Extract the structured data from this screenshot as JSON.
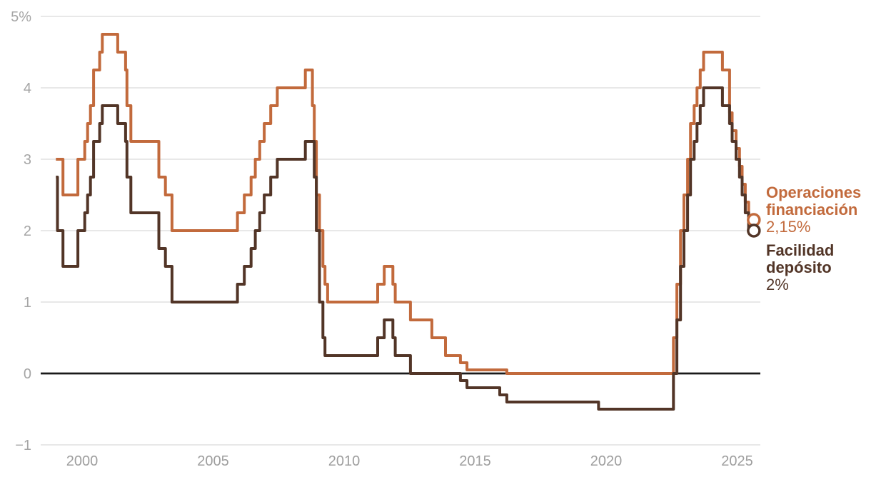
{
  "chart_data": {
    "type": "line",
    "subtype": "step",
    "title": "",
    "xlabel": "",
    "ylabel": "",
    "xlim": [
      1999.0,
      2025.75
    ],
    "ylim": [
      -1,
      5
    ],
    "grid": "horizontal",
    "legend_position": "right-outside",
    "x_ticks": [
      2000,
      2005,
      2010,
      2015,
      2020,
      2025
    ],
    "y_ticks": [
      {
        "v": 5,
        "label": "5%"
      },
      {
        "v": 4,
        "label": "4"
      },
      {
        "v": 3,
        "label": "3"
      },
      {
        "v": 2,
        "label": "2"
      },
      {
        "v": 1,
        "label": "1"
      },
      {
        "v": 0,
        "label": "0"
      },
      {
        "v": -1,
        "label": "−1"
      }
    ],
    "zero_line_color": "#1a1a1a",
    "grid_color": "#e8e8e8",
    "tick_color": "#a5a5a5",
    "background_color": "#ffffff",
    "x_end": 2025.5,
    "series": [
      {
        "name": "Operaciones financiación",
        "color": "#c26a3c",
        "current_value": "2,15%",
        "end_label": {
          "line1": "Operaciones",
          "line2": "financiación",
          "value": "2,15%"
        },
        "points": [
          [
            1999.0,
            3.0
          ],
          [
            1999.27,
            2.5
          ],
          [
            1999.84,
            3.0
          ],
          [
            2000.1,
            3.25
          ],
          [
            2000.21,
            3.5
          ],
          [
            2000.32,
            3.75
          ],
          [
            2000.44,
            4.25
          ],
          [
            2000.67,
            4.5
          ],
          [
            2000.77,
            4.75
          ],
          [
            2001.36,
            4.5
          ],
          [
            2001.66,
            4.25
          ],
          [
            2001.71,
            3.75
          ],
          [
            2001.86,
            3.25
          ],
          [
            2002.93,
            2.75
          ],
          [
            2003.18,
            2.5
          ],
          [
            2003.43,
            2.0
          ],
          [
            2005.93,
            2.25
          ],
          [
            2006.19,
            2.5
          ],
          [
            2006.45,
            2.75
          ],
          [
            2006.61,
            3.0
          ],
          [
            2006.78,
            3.25
          ],
          [
            2006.95,
            3.5
          ],
          [
            2007.2,
            3.75
          ],
          [
            2007.45,
            4.0
          ],
          [
            2008.52,
            4.25
          ],
          [
            2008.79,
            3.75
          ],
          [
            2008.86,
            3.25
          ],
          [
            2008.94,
            2.5
          ],
          [
            2009.06,
            2.0
          ],
          [
            2009.19,
            1.5
          ],
          [
            2009.27,
            1.25
          ],
          [
            2009.37,
            1.0
          ],
          [
            2011.28,
            1.25
          ],
          [
            2011.53,
            1.5
          ],
          [
            2011.86,
            1.25
          ],
          [
            2011.95,
            1.0
          ],
          [
            2012.53,
            0.75
          ],
          [
            2013.35,
            0.5
          ],
          [
            2013.87,
            0.25
          ],
          [
            2014.44,
            0.15
          ],
          [
            2014.69,
            0.05
          ],
          [
            2016.21,
            0.0
          ],
          [
            2022.57,
            0.5
          ],
          [
            2022.7,
            1.25
          ],
          [
            2022.84,
            2.0
          ],
          [
            2022.97,
            2.5
          ],
          [
            2023.11,
            3.0
          ],
          [
            2023.22,
            3.5
          ],
          [
            2023.36,
            3.75
          ],
          [
            2023.47,
            4.0
          ],
          [
            2023.59,
            4.25
          ],
          [
            2023.72,
            4.5
          ],
          [
            2024.44,
            4.25
          ],
          [
            2024.71,
            3.65
          ],
          [
            2024.81,
            3.4
          ],
          [
            2024.96,
            3.15
          ],
          [
            2025.09,
            2.9
          ],
          [
            2025.19,
            2.65
          ],
          [
            2025.31,
            2.4
          ],
          [
            2025.44,
            2.15
          ]
        ]
      },
      {
        "name": "Facilidad depósito",
        "color": "#523527",
        "current_value": "2%",
        "end_label": {
          "line1": "Facilidad",
          "line2": "depósito",
          "value": "2%"
        },
        "points": [
          [
            1999.0,
            2.75
          ],
          [
            1999.06,
            2.0
          ],
          [
            1999.27,
            1.5
          ],
          [
            1999.84,
            2.0
          ],
          [
            2000.1,
            2.25
          ],
          [
            2000.21,
            2.5
          ],
          [
            2000.32,
            2.75
          ],
          [
            2000.44,
            3.25
          ],
          [
            2000.67,
            3.5
          ],
          [
            2000.77,
            3.75
          ],
          [
            2001.36,
            3.5
          ],
          [
            2001.66,
            3.25
          ],
          [
            2001.71,
            2.75
          ],
          [
            2001.86,
            2.25
          ],
          [
            2002.93,
            1.75
          ],
          [
            2003.18,
            1.5
          ],
          [
            2003.43,
            1.0
          ],
          [
            2005.93,
            1.25
          ],
          [
            2006.19,
            1.5
          ],
          [
            2006.45,
            1.75
          ],
          [
            2006.61,
            2.0
          ],
          [
            2006.78,
            2.25
          ],
          [
            2006.95,
            2.5
          ],
          [
            2007.2,
            2.75
          ],
          [
            2007.45,
            3.0
          ],
          [
            2008.52,
            3.25
          ],
          [
            2008.86,
            2.75
          ],
          [
            2008.94,
            2.0
          ],
          [
            2009.06,
            1.0
          ],
          [
            2009.19,
            0.5
          ],
          [
            2009.27,
            0.25
          ],
          [
            2011.28,
            0.5
          ],
          [
            2011.53,
            0.75
          ],
          [
            2011.86,
            0.5
          ],
          [
            2011.95,
            0.25
          ],
          [
            2012.53,
            0.0
          ],
          [
            2014.44,
            -0.1
          ],
          [
            2014.69,
            -0.2
          ],
          [
            2015.94,
            -0.3
          ],
          [
            2016.21,
            -0.4
          ],
          [
            2019.71,
            -0.5
          ],
          [
            2022.57,
            0.0
          ],
          [
            2022.7,
            0.75
          ],
          [
            2022.84,
            1.5
          ],
          [
            2022.97,
            2.0
          ],
          [
            2023.11,
            2.5
          ],
          [
            2023.22,
            3.0
          ],
          [
            2023.36,
            3.25
          ],
          [
            2023.47,
            3.5
          ],
          [
            2023.59,
            3.75
          ],
          [
            2023.72,
            4.0
          ],
          [
            2024.44,
            3.75
          ],
          [
            2024.71,
            3.5
          ],
          [
            2024.81,
            3.25
          ],
          [
            2024.96,
            3.0
          ],
          [
            2025.09,
            2.75
          ],
          [
            2025.19,
            2.5
          ],
          [
            2025.31,
            2.25
          ],
          [
            2025.44,
            2.0
          ]
        ]
      }
    ]
  }
}
